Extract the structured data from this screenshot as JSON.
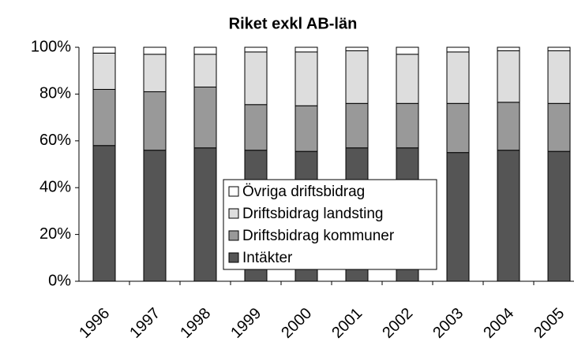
{
  "chart_data": {
    "type": "stacked_bar",
    "title": "Riket exkl AB-län",
    "categories": [
      "1996",
      "1997",
      "1998",
      "1999",
      "2000",
      "2001",
      "2002",
      "2003",
      "2004",
      "2005"
    ],
    "series": [
      {
        "name": "Intäkter",
        "color": "#555555",
        "values": [
          58,
          56,
          57,
          56,
          55.5,
          57,
          57,
          55,
          56,
          55.5
        ]
      },
      {
        "name": "Driftsbidrag kommuner",
        "color": "#999999",
        "values": [
          24,
          25,
          26,
          19.5,
          19.5,
          19,
          19,
          21,
          20.5,
          20.5
        ]
      },
      {
        "name": "Driftsbidrag landsting",
        "color": "#dddddd",
        "values": [
          15.5,
          16,
          14,
          22.5,
          23,
          22.5,
          21,
          22,
          22,
          22.5
        ]
      },
      {
        "name": "Övriga driftsbidrag",
        "color": "#ffffff",
        "values": [
          2.5,
          3,
          3,
          2,
          2,
          1.5,
          3,
          2,
          1.5,
          1.5
        ]
      }
    ],
    "ylim": [
      0,
      100
    ],
    "yticks": [
      {
        "value": 0,
        "label": "0%"
      },
      {
        "value": 20,
        "label": "20%"
      },
      {
        "value": 40,
        "label": "40%"
      },
      {
        "value": 60,
        "label": "60%"
      },
      {
        "value": 80,
        "label": "80%"
      },
      {
        "value": 100,
        "label": "100%"
      }
    ],
    "grid": false,
    "legend": "center"
  }
}
